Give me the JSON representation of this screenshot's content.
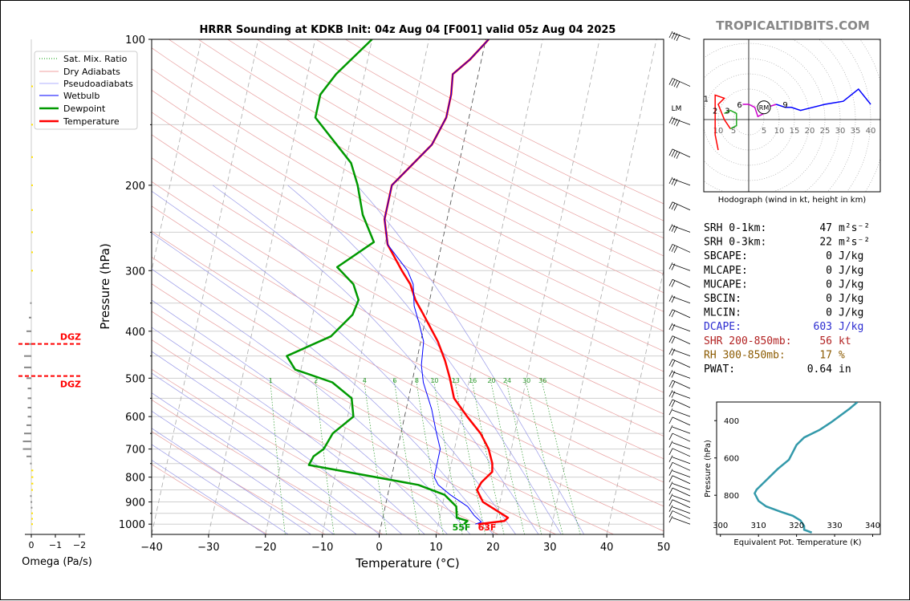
{
  "chart_data": [
    {
      "type": "line",
      "title": "HRRR Sounding at KDKB Init: 04z Aug 04 [F001] valid 05z Aug 04 2025",
      "xlabel": "Temperature (°C)",
      "ylabel": "Pressure (hPa)",
      "xlim": [
        -40,
        50
      ],
      "ylim": [
        1050,
        100
      ],
      "y_scale": "log",
      "x_ticks": [
        "−40",
        "−30",
        "−20",
        "−10",
        "0",
        "10",
        "20",
        "30",
        "40",
        "50"
      ],
      "y_ticks": [
        "100",
        "200",
        "300",
        "400",
        "500",
        "600",
        "700",
        "800",
        "900",
        "1000"
      ],
      "legend": [
        "Sat. Mix. Ratio",
        "Dry Adiabats",
        "Pseudoadiabats",
        "Wetbulb",
        "Dewpoint",
        "Temperature"
      ],
      "legend_position": "top-left",
      "mixing_ratio_labels": [
        "1",
        "2",
        "4",
        "6",
        "8",
        "10",
        "13",
        "16",
        "20",
        "24",
        "30",
        "36"
      ],
      "surface_labels": {
        "dewpoint": "55F",
        "temperature": "63F"
      },
      "lm_label": "LM",
      "series": [
        {
          "name": "Temperature",
          "color": "#ff0000",
          "points": [
            [
              17,
              1000
            ],
            [
              21.5,
              985
            ],
            [
              22,
              970
            ],
            [
              17,
              900
            ],
            [
              15.5,
              850
            ],
            [
              16,
              820
            ],
            [
              17.5,
              780
            ],
            [
              17.2,
              750
            ],
            [
              16,
              700
            ],
            [
              14,
              650
            ],
            [
              11,
              600
            ],
            [
              8,
              550
            ],
            [
              6.5,
              500
            ],
            [
              5,
              460
            ],
            [
              3,
              420
            ],
            [
              -0.5,
              370
            ],
            [
              -2.5,
              345
            ],
            [
              -4,
              320
            ],
            [
              -6,
              300
            ],
            [
              -9.5,
              265
            ],
            [
              -11,
              235
            ],
            [
              -11,
              200
            ],
            [
              -5.5,
              165
            ],
            [
              -4,
              145
            ],
            [
              -4,
              130
            ],
            [
              -4.5,
              118
            ],
            [
              -2,
              110
            ],
            [
              0.5,
              100
            ]
          ]
        },
        {
          "name": "Dewpoint",
          "color": "#009900",
          "points": [
            [
              14.5,
              1000
            ],
            [
              15,
              985
            ],
            [
              13,
              970
            ],
            [
              12.5,
              920
            ],
            [
              10,
              870
            ],
            [
              5,
              830
            ],
            [
              -15,
              755
            ],
            [
              -14.5,
              725
            ],
            [
              -13,
              700
            ],
            [
              -12,
              650
            ],
            [
              -9,
              600
            ],
            [
              -10,
              550
            ],
            [
              -14,
              510
            ],
            [
              -21,
              480
            ],
            [
              -23,
              450
            ],
            [
              -16,
              410
            ],
            [
              -13,
              370
            ],
            [
              -12.5,
              345
            ],
            [
              -14,
              320
            ],
            [
              -17.5,
              295
            ],
            [
              -12,
              262
            ],
            [
              -15,
              230
            ],
            [
              -17,
              200
            ],
            [
              -19,
              180
            ],
            [
              -27,
              145
            ],
            [
              -27,
              130
            ],
            [
              -25,
              118
            ],
            [
              -20,
              100
            ]
          ]
        },
        {
          "name": "Wetbulb",
          "color": "#0000ff",
          "points": [
            [
              16.5,
              1000
            ],
            [
              17.5,
              990
            ],
            [
              16,
              960
            ],
            [
              14.5,
              920
            ],
            [
              11,
              870
            ],
            [
              8.5,
              830
            ],
            [
              7.5,
              800
            ],
            [
              7.5,
              750
            ],
            [
              7.5,
              700
            ],
            [
              6,
              640
            ],
            [
              4.5,
              580
            ],
            [
              2,
              510
            ],
            [
              1,
              470
            ],
            [
              0.5,
              420
            ],
            [
              -1,
              385
            ],
            [
              -2.5,
              355
            ],
            [
              -3.5,
              320
            ],
            [
              -5,
              300
            ],
            [
              -9.5,
              265
            ],
            [
              -11,
              235
            ],
            [
              -11,
              200
            ],
            [
              -5.5,
              165
            ],
            [
              -4,
              145
            ],
            [
              -4,
              130
            ],
            [
              -4.5,
              118
            ],
            [
              -2,
              110
            ],
            [
              0.5,
              100
            ]
          ]
        }
      ]
    },
    {
      "type": "bar",
      "title": "",
      "xlabel": "Omega (Pa/s)",
      "x_ticks": [
        "0",
        "−1",
        "−2"
      ],
      "dgz_label": "DGZ",
      "dgz_levels_hPa": [
        425,
        495
      ],
      "values": [
        [
          1000,
          -0.05
        ],
        [
          975,
          -0.05
        ],
        [
          950,
          -0.04
        ],
        [
          925,
          0.02
        ],
        [
          900,
          0.03
        ],
        [
          875,
          0.05
        ],
        [
          850,
          -0.05
        ],
        [
          825,
          -0.08
        ],
        [
          800,
          -0.08
        ],
        [
          775,
          -0.08
        ],
        [
          750,
          0.05
        ],
        [
          725,
          0.2
        ],
        [
          700,
          0.35
        ],
        [
          675,
          0.35
        ],
        [
          650,
          0.3
        ],
        [
          625,
          0.2
        ],
        [
          600,
          0.15
        ],
        [
          575,
          0.15
        ],
        [
          550,
          0.15
        ],
        [
          525,
          0.15
        ],
        [
          500,
          0.2
        ],
        [
          475,
          0.3
        ],
        [
          450,
          0.3
        ],
        [
          425,
          0.25
        ],
        [
          400,
          0.2
        ],
        [
          375,
          0.1
        ],
        [
          350,
          0.05
        ],
        [
          300,
          -0.03
        ],
        [
          275,
          -0.03
        ],
        [
          250,
          -0.03
        ],
        [
          225,
          -0.03
        ],
        [
          200,
          -0.03
        ],
        [
          175,
          -0.03
        ],
        [
          150,
          -0.03
        ],
        [
          125,
          -0.03
        ]
      ]
    },
    {
      "type": "line",
      "title": "Hodograph (wind in kt, height in km)",
      "x_ring_labels": [
        "10",
        "5",
        "5",
        "10",
        "15",
        "20",
        "25",
        "30",
        "35",
        "40"
      ],
      "height_labels": [
        "1",
        "2",
        "3",
        "6",
        "9"
      ],
      "storm_motion_label": "RM",
      "series": [
        {
          "name": "0-3 km",
          "color": "#ff0000",
          "points": [
            [
              -10,
              -10
            ],
            [
              -11,
              -5
            ],
            [
              -11,
              8
            ],
            [
              -8,
              7
            ],
            [
              -10,
              5
            ],
            [
              -8,
              0
            ],
            [
              -6,
              -3
            ]
          ]
        },
        {
          "name": "3-6 km",
          "color": "#22aa22",
          "points": [
            [
              -6,
              -3
            ],
            [
              -4,
              -2
            ],
            [
              -4,
              2
            ],
            [
              -6,
              3
            ],
            [
              -8,
              2
            ]
          ]
        },
        {
          "name": "6-9 km",
          "color": "#cc00cc",
          "points": [
            [
              -2,
              5
            ],
            [
              0,
              5
            ],
            [
              2,
              4
            ],
            [
              3,
              1
            ],
            [
              5,
              2
            ],
            [
              6,
              4
            ],
            [
              9,
              5
            ]
          ]
        },
        {
          "name": "9+ km",
          "color": "#0000ff",
          "points": [
            [
              9,
              5
            ],
            [
              12,
              4
            ],
            [
              14,
              4
            ],
            [
              17,
              3
            ],
            [
              25,
              5
            ],
            [
              31,
              6
            ],
            [
              36,
              10
            ],
            [
              40,
              5
            ]
          ]
        }
      ]
    },
    {
      "type": "line",
      "title": "",
      "xlabel": "Equivalent Pot. Temperature (K)",
      "ylabel": "Pressure (hPa)",
      "xlim": [
        299,
        342
      ],
      "ylim": [
        1010,
        300
      ],
      "x_ticks": [
        "300",
        "310",
        "320",
        "330",
        "340"
      ],
      "y_ticks": [
        "400",
        "600",
        "800"
      ],
      "series": [
        {
          "name": "Equivalent Pot. Temperature",
          "color": "#3399aa",
          "points": [
            [
              324,
              1000
            ],
            [
              322,
              985
            ],
            [
              322,
              965
            ],
            [
              321,
              935
            ],
            [
              319,
              910
            ],
            [
              316,
              890
            ],
            [
              312,
              860
            ],
            [
              310,
              830
            ],
            [
              309,
              790
            ],
            [
              309.5,
              770
            ],
            [
              312,
              720
            ],
            [
              315,
              660
            ],
            [
              318,
              610
            ],
            [
              319,
              570
            ],
            [
              320,
              530
            ],
            [
              322,
              490
            ],
            [
              326,
              450
            ],
            [
              329,
              410
            ],
            [
              331,
              380
            ],
            [
              334,
              335
            ],
            [
              336,
              300
            ]
          ]
        }
      ]
    }
  ],
  "branding": "TROPICALTIDBITS.COM",
  "indices": [
    {
      "label": "SRH 0-1km:",
      "value": "47",
      "unit": "m²s⁻²",
      "color": "#000000"
    },
    {
      "label": "SRH 0-3km:",
      "value": "22",
      "unit": "m²s⁻²",
      "color": "#000000"
    },
    {
      "label": "SBCAPE:",
      "value": "0",
      "unit": "J/kg",
      "color": "#000000"
    },
    {
      "label": "MLCAPE:",
      "value": "0",
      "unit": "J/kg",
      "color": "#000000"
    },
    {
      "label": "MUCAPE:",
      "value": "0",
      "unit": "J/kg",
      "color": "#000000"
    },
    {
      "label": "SBCIN:",
      "value": "0",
      "unit": "J/kg",
      "color": "#000000"
    },
    {
      "label": "MLCIN:",
      "value": "0",
      "unit": "J/kg",
      "color": "#000000"
    },
    {
      "label": "DCAPE:",
      "value": "603",
      "unit": "J/kg",
      "color": "#2b2bd0"
    },
    {
      "label": "SHR 200-850mb:",
      "value": "56",
      "unit": "kt",
      "color": "#b22222"
    },
    {
      "label": "RH 300-850mb:",
      "value": "17",
      "unit": "%",
      "color": "#8b5a00"
    },
    {
      "label": "PWAT:",
      "value": "0.64",
      "unit": "in",
      "color": "#000000"
    }
  ]
}
